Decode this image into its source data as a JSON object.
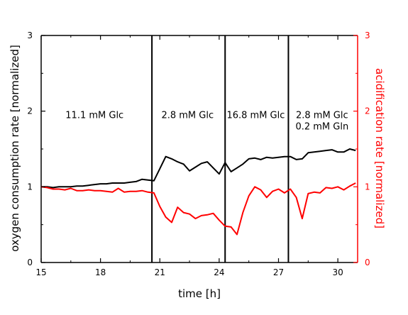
{
  "chart_data": {
    "type": "line",
    "title": "",
    "xlabel": "time [h]",
    "ylabel_left": "oxygen consumption rate [normalized]",
    "ylabel_right": "acidification rate [normalized]",
    "xlim": [
      15,
      31
    ],
    "ylim_left": [
      0,
      3
    ],
    "ylim_right": [
      0,
      3
    ],
    "x_ticks": [
      15,
      18,
      21,
      24,
      27,
      30
    ],
    "y_ticks_left": [
      0,
      1,
      2,
      3
    ],
    "y_ticks_right": [
      0,
      1,
      2,
      3
    ],
    "grid": false,
    "legend": "none",
    "colors": {
      "left_axis": "#000000",
      "right_axis": "#ff0000",
      "frame": "#000000"
    },
    "vertical_lines_x": [
      20.6,
      24.3,
      27.5
    ],
    "annotations": [
      {
        "lines": [
          "11.1 mM Glc"
        ],
        "x": 17.7,
        "y": 1.85
      },
      {
        "lines": [
          "2.8 mM Glc"
        ],
        "x": 22.4,
        "y": 1.85
      },
      {
        "lines": [
          "16.8 mM Glc"
        ],
        "x": 25.85,
        "y": 1.85
      },
      {
        "lines": [
          "2.8 mM Glc",
          "0.2 mM Gln"
        ],
        "x": 29.2,
        "y": 1.85
      }
    ],
    "series": [
      {
        "axis": "left",
        "color": "#000000",
        "x": [
          15.0,
          15.3,
          15.6,
          15.9,
          16.2,
          16.5,
          16.8,
          17.1,
          17.4,
          17.7,
          18.0,
          18.3,
          18.6,
          18.9,
          19.2,
          19.5,
          19.8,
          20.1,
          20.4,
          20.7,
          21.0,
          21.3,
          21.6,
          21.9,
          22.2,
          22.5,
          22.8,
          23.1,
          23.4,
          23.7,
          24.0,
          24.3,
          24.6,
          24.9,
          25.2,
          25.5,
          25.8,
          26.1,
          26.4,
          26.7,
          27.0,
          27.3,
          27.6,
          27.9,
          28.2,
          28.5,
          28.8,
          29.1,
          29.4,
          29.7,
          30.0,
          30.3,
          30.6,
          30.9
        ],
        "y": [
          1.0,
          1.0,
          0.99,
          1.0,
          1.0,
          1.0,
          1.01,
          1.01,
          1.02,
          1.03,
          1.04,
          1.04,
          1.05,
          1.05,
          1.05,
          1.06,
          1.07,
          1.1,
          1.09,
          1.08,
          1.24,
          1.4,
          1.37,
          1.33,
          1.3,
          1.21,
          1.26,
          1.31,
          1.33,
          1.25,
          1.17,
          1.32,
          1.2,
          1.25,
          1.3,
          1.37,
          1.38,
          1.36,
          1.39,
          1.38,
          1.39,
          1.4,
          1.4,
          1.36,
          1.37,
          1.45,
          1.46,
          1.47,
          1.48,
          1.49,
          1.46,
          1.46,
          1.5,
          1.48
        ]
      },
      {
        "axis": "right",
        "color": "#ff0000",
        "x": [
          15.0,
          15.3,
          15.6,
          15.9,
          16.2,
          16.5,
          16.8,
          17.1,
          17.4,
          17.7,
          18.0,
          18.3,
          18.6,
          18.9,
          19.2,
          19.5,
          19.8,
          20.1,
          20.4,
          20.7,
          21.0,
          21.3,
          21.6,
          21.9,
          22.2,
          22.5,
          22.8,
          23.1,
          23.4,
          23.7,
          24.0,
          24.3,
          24.6,
          24.9,
          25.2,
          25.5,
          25.8,
          26.1,
          26.4,
          26.7,
          27.0,
          27.3,
          27.6,
          27.9,
          28.2,
          28.5,
          28.8,
          29.1,
          29.4,
          29.7,
          30.0,
          30.3,
          30.6,
          30.9
        ],
        "y": [
          1.0,
          0.99,
          0.97,
          0.97,
          0.96,
          0.98,
          0.95,
          0.95,
          0.96,
          0.95,
          0.95,
          0.94,
          0.93,
          0.98,
          0.93,
          0.94,
          0.94,
          0.95,
          0.93,
          0.92,
          0.74,
          0.6,
          0.53,
          0.73,
          0.66,
          0.64,
          0.58,
          0.62,
          0.63,
          0.65,
          0.56,
          0.48,
          0.47,
          0.37,
          0.66,
          0.88,
          1.0,
          0.96,
          0.86,
          0.94,
          0.97,
          0.92,
          0.97,
          0.86,
          0.58,
          0.91,
          0.93,
          0.92,
          0.99,
          0.98,
          1.0,
          0.96,
          1.01,
          1.05
        ]
      }
    ]
  }
}
